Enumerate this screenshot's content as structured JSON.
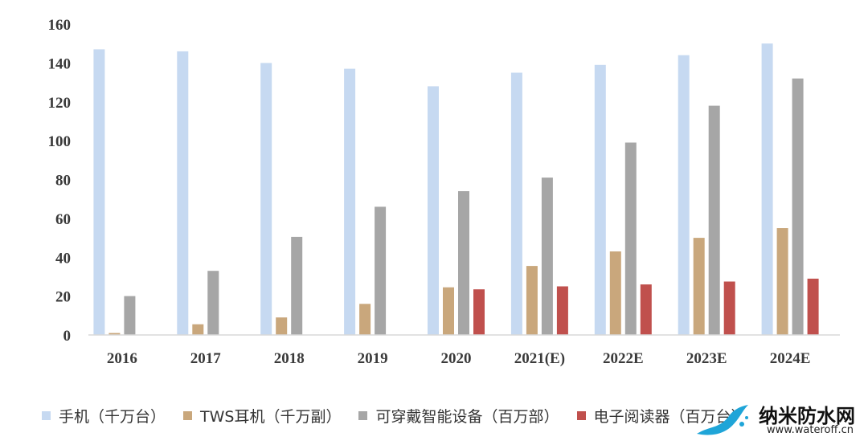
{
  "chart_data": {
    "type": "bar",
    "categories": [
      "2016",
      "2017",
      "2018",
      "2019",
      "2020",
      "2021(E)",
      "2022E",
      "2023E",
      "2024E"
    ],
    "series": [
      {
        "name": "手机（千万台）",
        "color": "#c6d9f1",
        "values": [
          147,
          146,
          140,
          137,
          128,
          135,
          139,
          144,
          150
        ]
      },
      {
        "name": "TWS耳机（千万副）",
        "color": "#c9a77c",
        "values": [
          1,
          5.5,
          9,
          16,
          24.5,
          35.5,
          43,
          50,
          55
        ]
      },
      {
        "name": "可穿戴智能设备（百万部）",
        "color": "#a6a6a6",
        "values": [
          20,
          33,
          50.5,
          66,
          74,
          81,
          99,
          118,
          132
        ]
      },
      {
        "name": "电子阅读器（百万台）",
        "color": "#c0504d",
        "values": [
          null,
          null,
          null,
          null,
          23.5,
          25,
          26,
          27.5,
          29
        ]
      }
    ],
    "yticks": [
      0,
      20,
      40,
      60,
      80,
      100,
      120,
      140,
      160
    ],
    "ylim": [
      0,
      160
    ],
    "title": "",
    "xlabel": "",
    "ylabel": "",
    "grid": false,
    "legend_position": "bottom"
  },
  "watermark": {
    "title": "纳米防水网",
    "url": "www.wateroff.cn"
  }
}
